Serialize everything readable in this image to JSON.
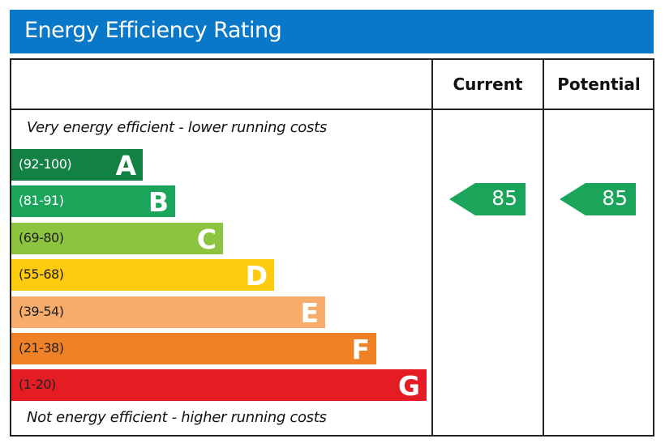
{
  "chart_data": {
    "type": "bar",
    "title": "Energy Efficiency Rating",
    "columns": [
      "Current",
      "Potential"
    ],
    "top_note": "Very energy efficient - lower running costs",
    "bottom_note": "Not energy efficient - higher running costs",
    "bands": [
      {
        "letter": "A",
        "range": "(92-100)",
        "color": "#138044",
        "label_color": "#ffffff"
      },
      {
        "letter": "B",
        "range": "(81-91)",
        "color": "#1aa55a",
        "label_color": "#ffffff"
      },
      {
        "letter": "C",
        "range": "(69-80)",
        "color": "#8cc43f",
        "label_color": "#222222"
      },
      {
        "letter": "D",
        "range": "(55-68)",
        "color": "#fecb0e",
        "label_color": "#222222"
      },
      {
        "letter": "E",
        "range": "(39-54)",
        "color": "#f7ac6b",
        "label_color": "#222222"
      },
      {
        "letter": "F",
        "range": "(21-38)",
        "color": "#ef8126",
        "label_color": "#222222"
      },
      {
        "letter": "G",
        "range": "(1-20)",
        "color": "#e31d23",
        "label_color": "#222222"
      }
    ],
    "current": {
      "value": "85",
      "band": "B",
      "color": "#1aa55a"
    },
    "potential": {
      "value": "85",
      "band": "B",
      "color": "#1aa55a"
    }
  }
}
